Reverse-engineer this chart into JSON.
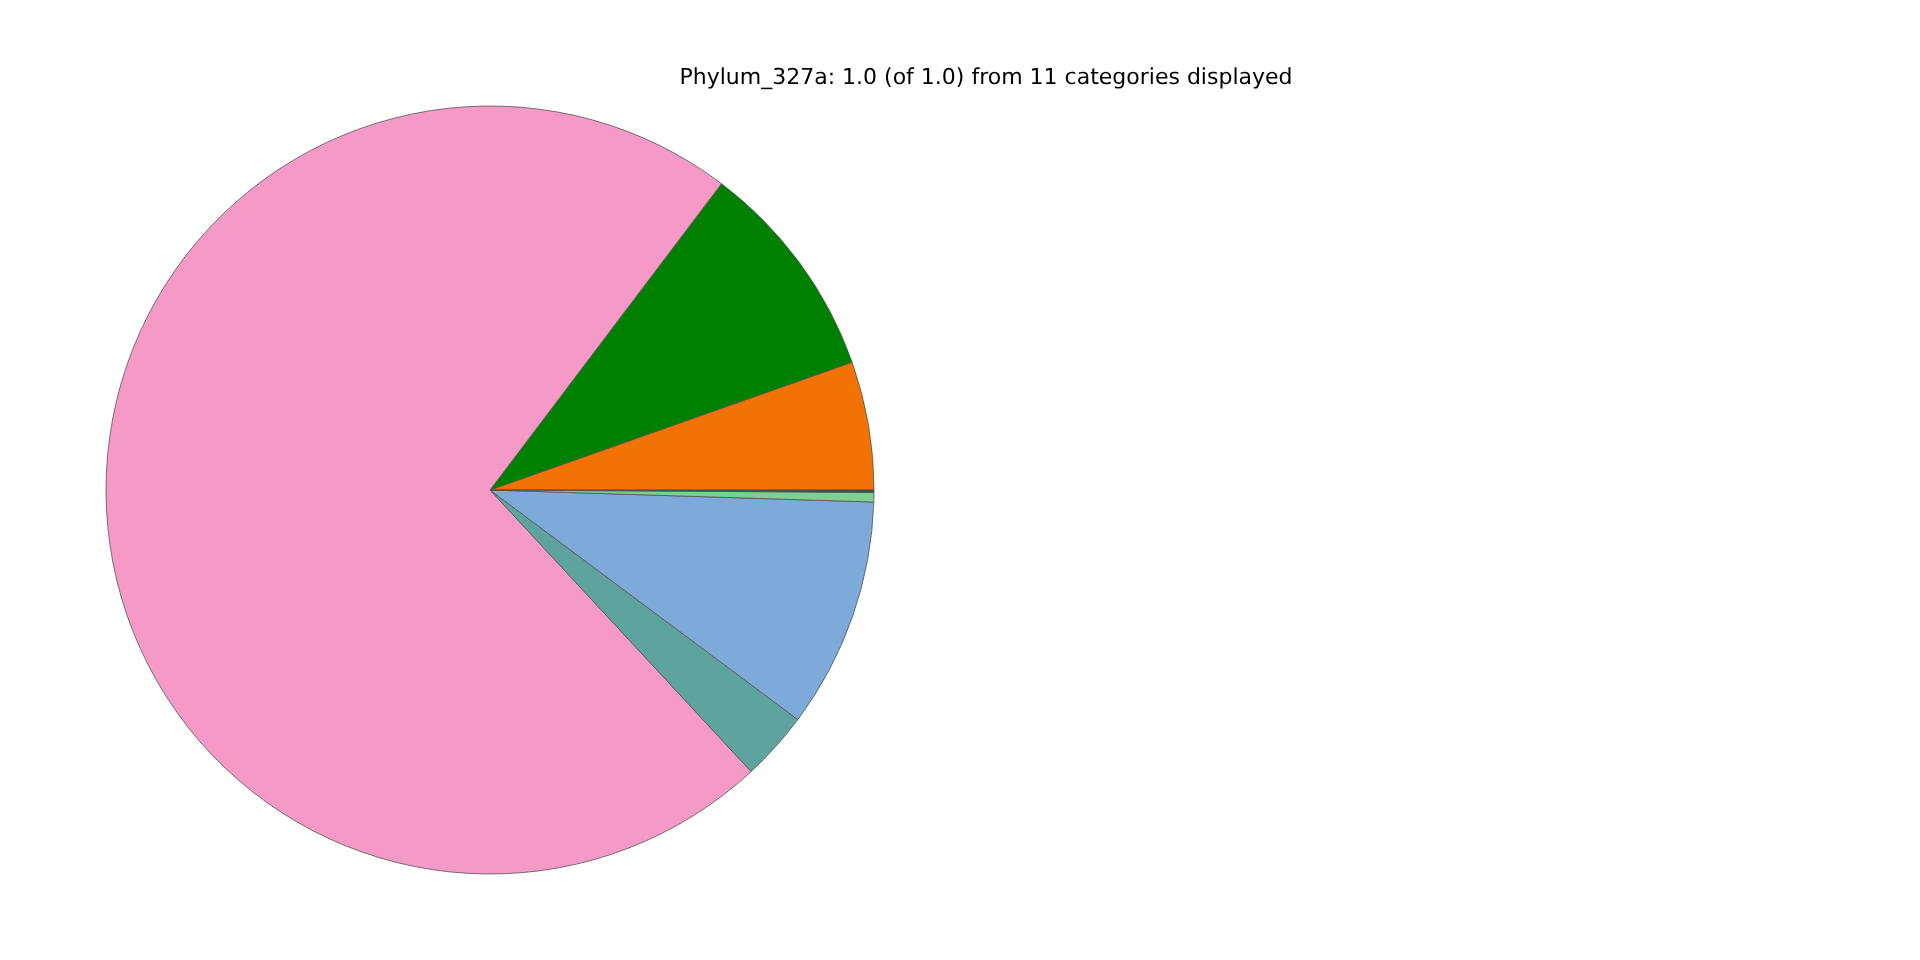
{
  "chart_data": {
    "type": "pie",
    "title": "Phylum_327a: 1.0 (of 1.0) from 11 categories displayed",
    "categories": [
      null,
      null,
      null,
      null,
      null,
      null,
      null
    ],
    "values": [
      5.4,
      9.3,
      72.2,
      2.9,
      9.7,
      0.4,
      0.1
    ],
    "colors": [
      "#f27304",
      "#008000",
      "#f59ac6",
      "#5fa39f",
      "#7eaada",
      "#7fcf8e",
      "#2f4f4f"
    ]
  }
}
